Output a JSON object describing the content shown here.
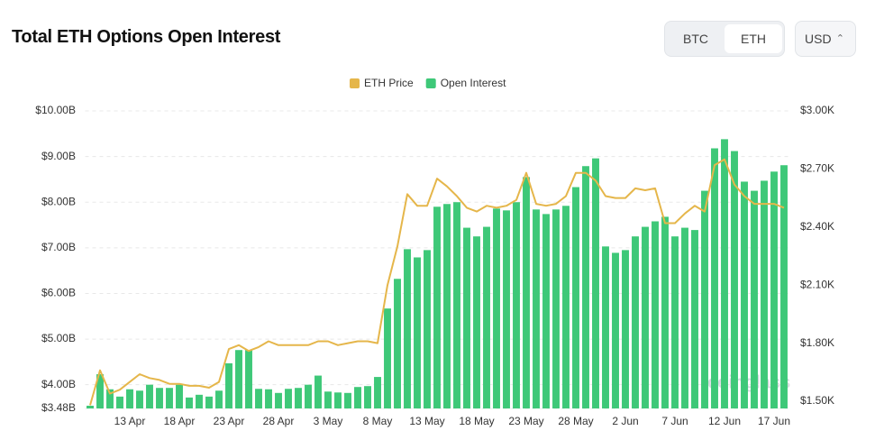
{
  "header": {
    "title": "Total ETH Options Open Interest"
  },
  "controls": {
    "coins": [
      "BTC",
      "ETH"
    ],
    "currency": "USD"
  },
  "chart_data": {
    "type": "bar",
    "watermark": "coinglass",
    "categories": [
      null,
      null,
      null,
      null,
      "13 Apr",
      null,
      null,
      null,
      null,
      "18 Apr",
      null,
      null,
      null,
      null,
      "23 Apr",
      null,
      null,
      null,
      null,
      "28 Apr",
      null,
      null,
      null,
      null,
      "3 May",
      null,
      null,
      null,
      null,
      "8 May",
      null,
      null,
      null,
      null,
      "13 May",
      null,
      null,
      null,
      null,
      "18 May",
      null,
      null,
      null,
      null,
      "23 May",
      null,
      null,
      null,
      null,
      "28 May",
      null,
      null,
      null,
      null,
      "2 Jun",
      null,
      null,
      null,
      null,
      "7 Jun",
      null,
      null,
      null,
      null,
      "12 Jun",
      null,
      null,
      null,
      null,
      "17 Jun",
      null
    ],
    "series": [
      {
        "name": "ETH Price",
        "type": "line",
        "axis": "y2",
        "color": "#e5b64a",
        "values": [
          1480,
          1660,
          1540,
          1560,
          1600,
          1640,
          1620,
          1610,
          1590,
          1590,
          1580,
          1580,
          1570,
          1600,
          1770,
          1790,
          1760,
          1780,
          1810,
          1790,
          1790,
          1790,
          1790,
          1810,
          1810,
          1790,
          1800,
          1810,
          1810,
          1800,
          2100,
          2300,
          2570,
          2510,
          2510,
          2650,
          2610,
          2560,
          2500,
          2480,
          2510,
          2500,
          2510,
          2540,
          2680,
          2520,
          2510,
          2520,
          2560,
          2680,
          2680,
          2640,
          2560,
          2550,
          2550,
          2600,
          2590,
          2600,
          2420,
          2420,
          2470,
          2510,
          2480,
          2720,
          2750,
          2620,
          2560,
          2520,
          2520,
          2520,
          2500
        ]
      },
      {
        "name": "Open Interest",
        "type": "bar",
        "axis": "y",
        "color": "#3ec878",
        "values": [
          3.54,
          4.23,
          3.9,
          3.74,
          3.9,
          3.87,
          4.0,
          3.93,
          3.93,
          4.0,
          3.72,
          3.78,
          3.74,
          3.87,
          4.47,
          4.76,
          4.76,
          3.91,
          3.9,
          3.82,
          3.91,
          3.93,
          4.0,
          4.2,
          3.85,
          3.83,
          3.82,
          3.95,
          3.97,
          4.17,
          5.67,
          6.32,
          6.97,
          6.79,
          6.95,
          7.9,
          7.96,
          8.0,
          7.44,
          7.25,
          7.46,
          7.86,
          7.82,
          8.0,
          8.55,
          7.84,
          7.74,
          7.84,
          7.92,
          8.33,
          8.79,
          8.96,
          7.03,
          6.89,
          6.95,
          7.25,
          7.46,
          7.58,
          7.68,
          7.25,
          7.44,
          7.39,
          8.25,
          9.18,
          9.38,
          9.12,
          8.45,
          8.25,
          8.47,
          8.67,
          8.81
        ]
      }
    ],
    "ylim": [
      3.48,
      10
    ],
    "yticks": [
      {
        "value": 3.48,
        "label": "$3.48B"
      },
      {
        "value": 4,
        "label": "$4.00B"
      },
      {
        "value": 5,
        "label": "$5.00B"
      },
      {
        "value": 6,
        "label": "$6.00B"
      },
      {
        "value": 7,
        "label": "$7.00B"
      },
      {
        "value": 8,
        "label": "$8.00B"
      },
      {
        "value": 9,
        "label": "$9.00B"
      },
      {
        "value": 10,
        "label": "$10.00B"
      }
    ],
    "y2lim": [
      1463,
      3000
    ],
    "y2ticks": [
      {
        "value": 1500,
        "label": "$1.50K"
      },
      {
        "value": 1800,
        "label": "$1.80K"
      },
      {
        "value": 2100,
        "label": "$2.10K"
      },
      {
        "value": 2400,
        "label": "$2.40K"
      },
      {
        "value": 2700,
        "label": "$2.70K"
      },
      {
        "value": 3000,
        "label": "$3.00K"
      }
    ],
    "grid": true,
    "legend": "top"
  }
}
